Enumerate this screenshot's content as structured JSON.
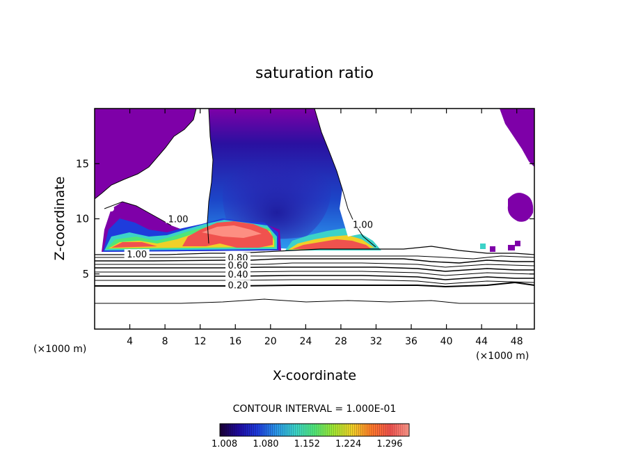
{
  "chart_data": {
    "type": "heatmap",
    "title": "saturation ratio",
    "xlabel": "X-coordinate",
    "ylabel": "Z-coordinate",
    "x_unit_label_left": "(×1000 m)",
    "x_unit_label_right": "(×1000 m)",
    "xlim": [
      0,
      50
    ],
    "ylim": [
      0,
      20
    ],
    "x_ticks": [
      4,
      8,
      12,
      16,
      20,
      24,
      28,
      32,
      36,
      40,
      44,
      48
    ],
    "y_ticks": [
      5,
      10,
      15
    ],
    "contour_interval_text": "CONTOUR INTERVAL = 1.000E-01",
    "contour_labels": [
      {
        "text": "1.00",
        "x": 4.8,
        "z": 6.8
      },
      {
        "text": "1.00",
        "x": 9.5,
        "z": 10.0
      },
      {
        "text": "1.00",
        "x": 30.5,
        "z": 9.5
      },
      {
        "text": "0.80",
        "x": 16.3,
        "z": 6.5
      },
      {
        "text": "0.60",
        "x": 16.3,
        "z": 5.8
      },
      {
        "text": "0.40",
        "x": 16.3,
        "z": 5.0
      },
      {
        "text": "0.20",
        "x": 16.3,
        "z": 4.0
      }
    ],
    "colorbar": {
      "tick_labels": [
        "1.008",
        "1.080",
        "1.152",
        "1.224",
        "1.296"
      ],
      "range": [
        1.0,
        1.33
      ],
      "colors": [
        "#1a0033",
        "#1e0aa0",
        "#1e3cdc",
        "#2a96e6",
        "#3cd2c8",
        "#50e678",
        "#a0e632",
        "#f0d028",
        "#ff7a2a",
        "#f0524e",
        "#ff9a8c"
      ]
    },
    "colors": {
      "supersaturated_floor": "#7e00a8",
      "dry": "#ffffff"
    }
  }
}
